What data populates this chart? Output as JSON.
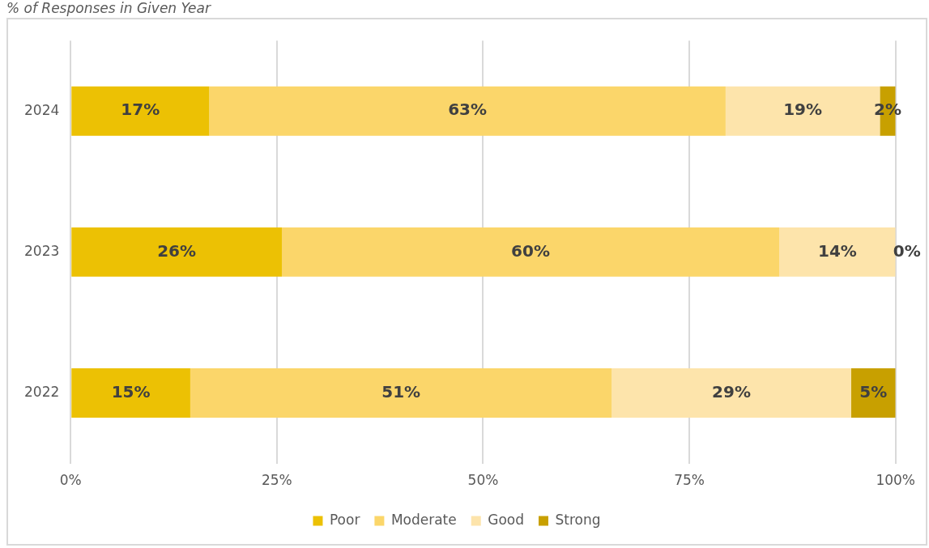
{
  "chart_data": {
    "type": "bar",
    "orientation": "horizontal",
    "stacked": true,
    "title": "% of Responses in Given Year",
    "categories": [
      "2024",
      "2023",
      "2022"
    ],
    "series": [
      {
        "name": "Poor",
        "color": "#ecc104",
        "values": [
          16.8,
          25.6,
          14.5
        ],
        "value_labels": [
          "17%",
          "26%",
          "15%"
        ]
      },
      {
        "name": "Moderate",
        "color": "#fbd66a",
        "values": [
          62.6,
          60.3,
          51.1
        ],
        "value_labels": [
          "63%",
          "60%",
          "51%"
        ]
      },
      {
        "name": "Good",
        "color": "#fde4ab",
        "values": [
          18.7,
          14.1,
          29.0
        ],
        "value_labels": [
          "19%",
          "14%",
          "29%"
        ]
      },
      {
        "name": "Strong",
        "color": "#c8a000",
        "values": [
          1.9,
          0,
          5.4
        ],
        "value_labels": [
          "2%",
          "0%",
          "5%"
        ]
      }
    ],
    "xlim": [
      0,
      100
    ],
    "xticks": [
      {
        "value": 0,
        "label": "0%"
      },
      {
        "value": 25,
        "label": "25%"
      },
      {
        "value": 50,
        "label": "50%"
      },
      {
        "value": 75,
        "label": "75%"
      },
      {
        "value": 100,
        "label": "100%"
      }
    ],
    "grid": "x",
    "legend": "bottom"
  }
}
